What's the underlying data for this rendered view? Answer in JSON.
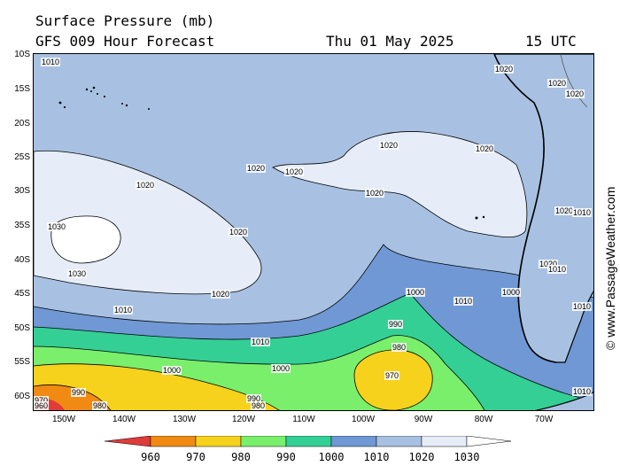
{
  "header": {
    "line1": "Surface Pressure (mb)",
    "line2": "GFS 009 Hour Forecast",
    "date": "Thu 01 May 2025",
    "time": "15 UTC"
  },
  "credit": "© www.PassageWeather.com",
  "lat_ticks": [
    "10S",
    "15S",
    "20S",
    "25S",
    "30S",
    "35S",
    "40S",
    "45S",
    "50S",
    "55S",
    "60S"
  ],
  "lon_ticks": [
    "150W",
    "140W",
    "130W",
    "120W",
    "110W",
    "100W",
    "90W",
    "80W",
    "70W"
  ],
  "colorbar": {
    "levels": [
      "960",
      "970",
      "980",
      "990",
      "1000",
      "1010",
      "1020",
      "1030"
    ],
    "colors": [
      "#e03a3a",
      "#f08a12",
      "#f6d21c",
      "#7aef6b",
      "#34cf95",
      "#6f98d4",
      "#a8c1e2",
      "#e6edf8"
    ]
  },
  "isobar_labels": [
    {
      "text": "1010"
    },
    {
      "text": "1020"
    },
    {
      "text": "1020"
    },
    {
      "text": "1020"
    },
    {
      "text": "1020"
    },
    {
      "text": "1020"
    },
    {
      "text": "1020"
    },
    {
      "text": "1030"
    },
    {
      "text": "1030"
    },
    {
      "text": "1020"
    },
    {
      "text": "1020"
    },
    {
      "text": "1020"
    },
    {
      "text": "1020"
    },
    {
      "text": "1010"
    },
    {
      "text": "1010"
    },
    {
      "text": "1000"
    },
    {
      "text": "1000"
    },
    {
      "text": "990"
    },
    {
      "text": "990"
    },
    {
      "text": "980"
    },
    {
      "text": "980"
    },
    {
      "text": "970"
    },
    {
      "text": "970"
    },
    {
      "text": "960"
    },
    {
      "text": "1000"
    },
    {
      "text": "1010"
    },
    {
      "text": "1000"
    },
    {
      "text": "1020"
    },
    {
      "text": "1020"
    },
    {
      "text": "1010"
    },
    {
      "text": "1020"
    },
    {
      "text": "1010"
    },
    {
      "text": "1010"
    },
    {
      "text": "990"
    },
    {
      "text": "980"
    },
    {
      "text": "1010"
    }
  ]
}
